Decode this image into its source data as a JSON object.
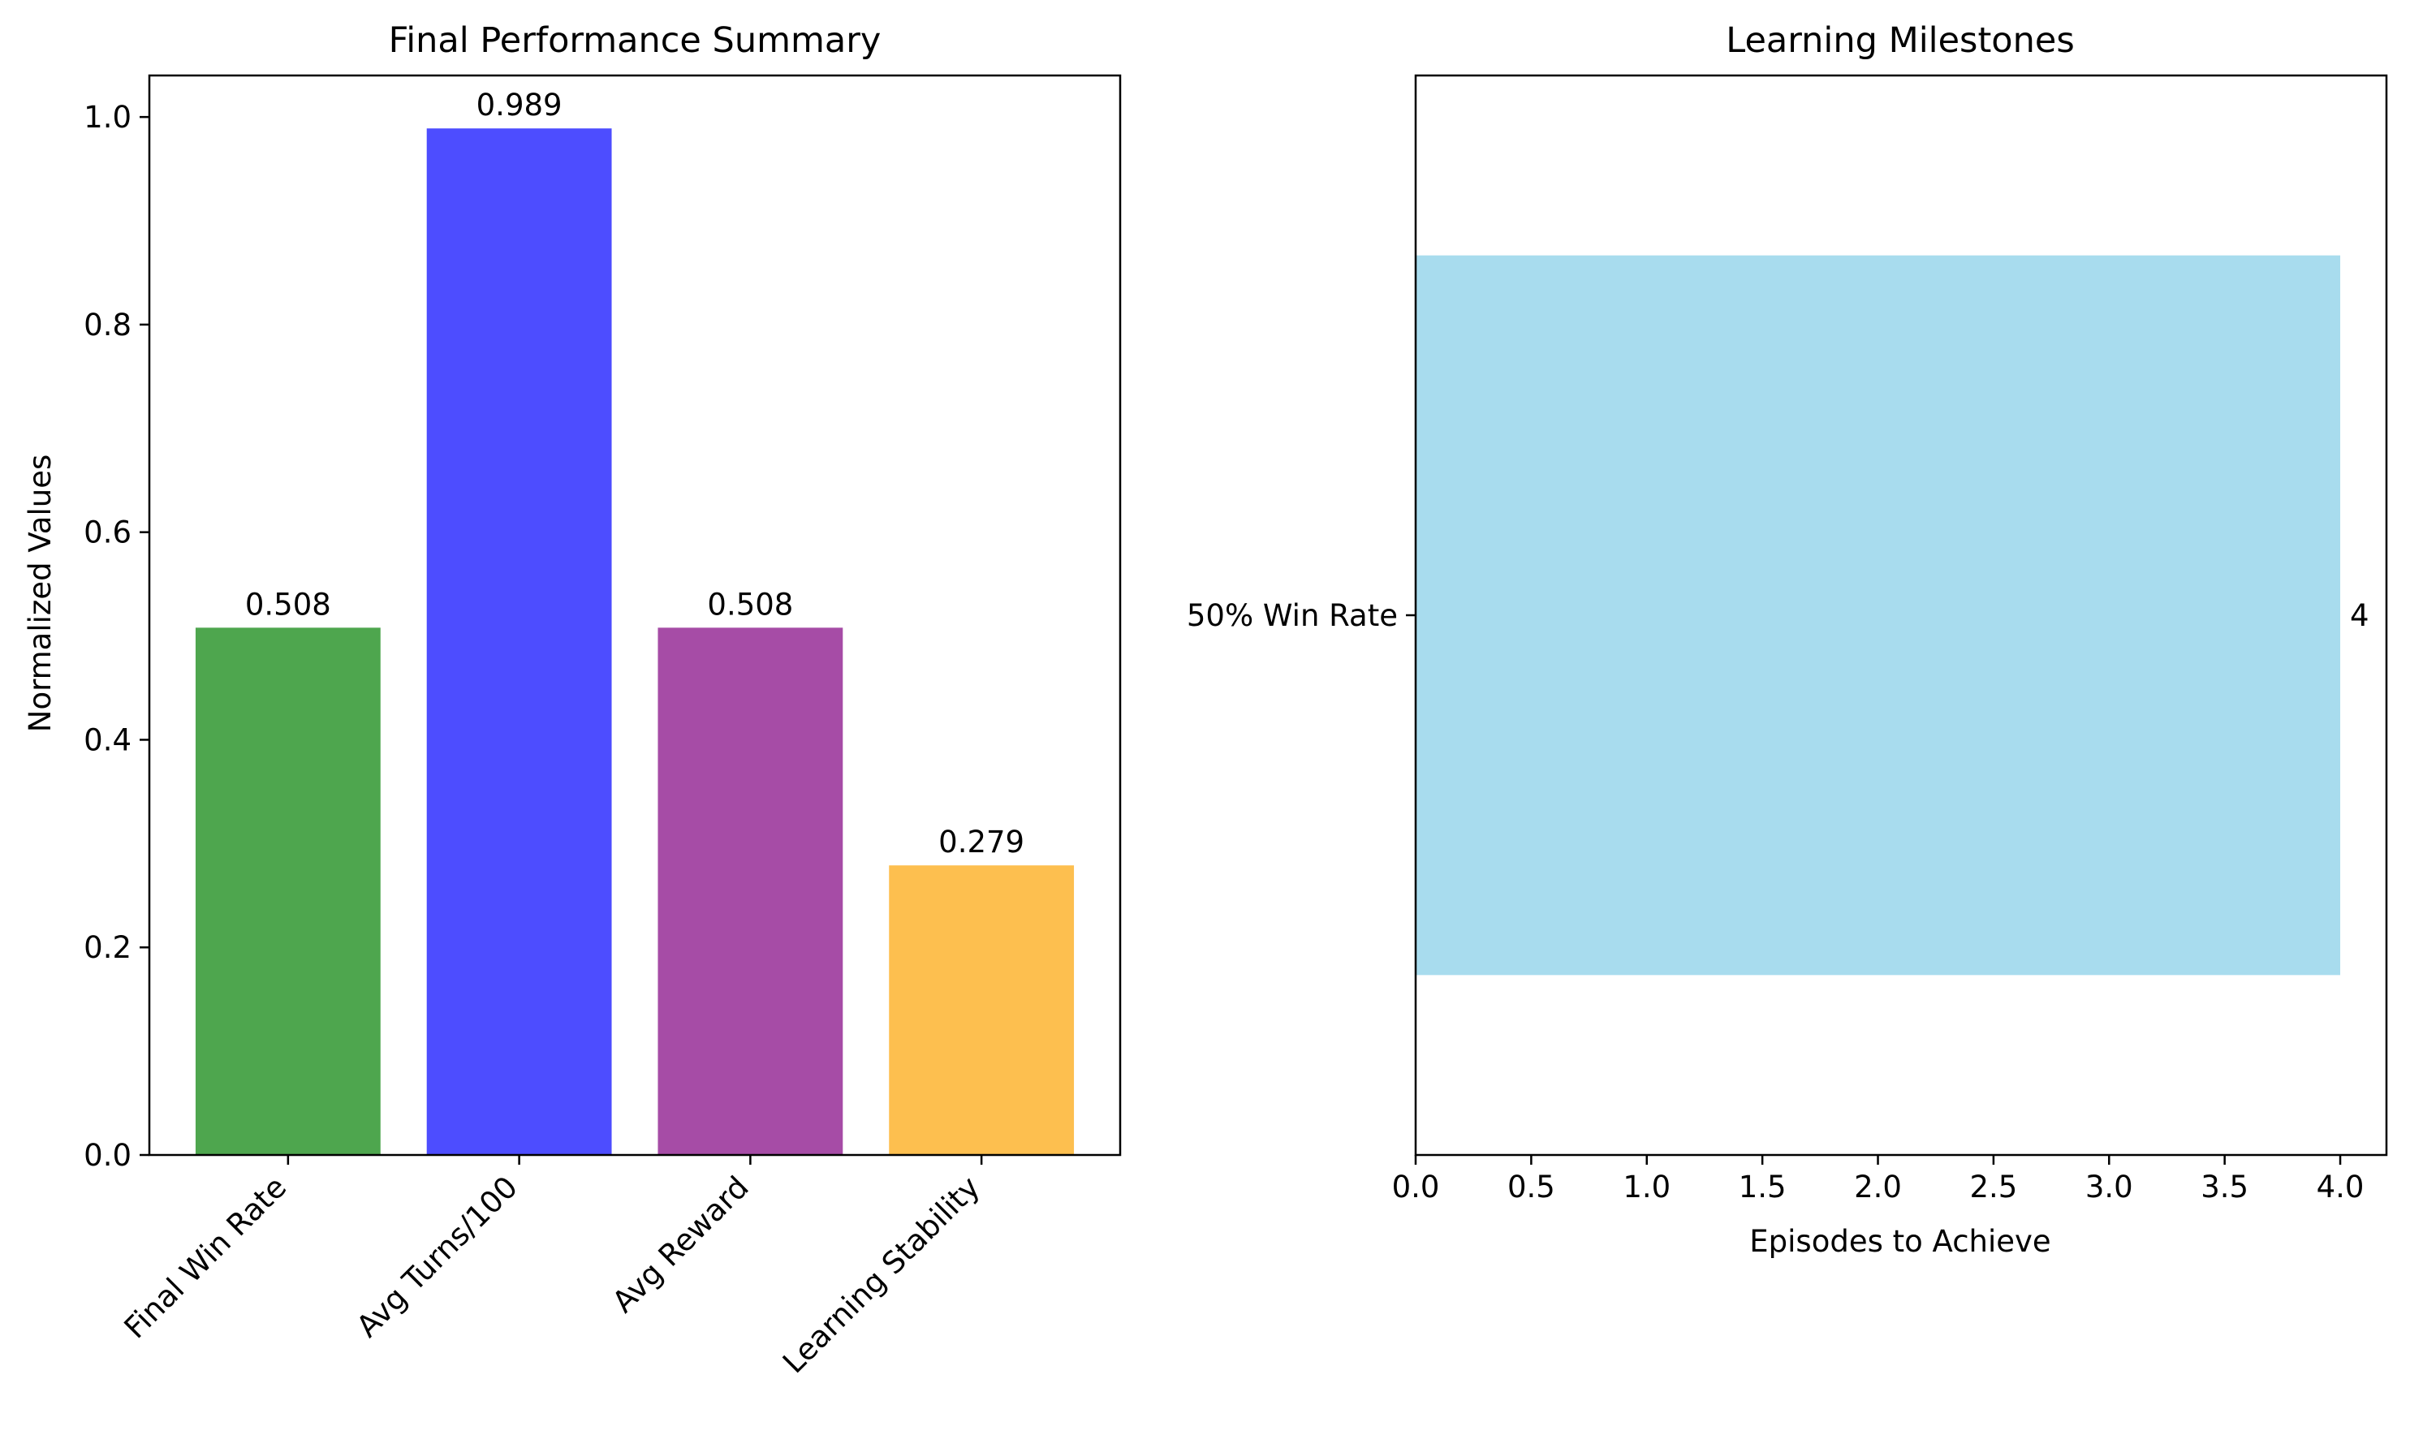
{
  "chart_data": [
    {
      "type": "bar",
      "title": "Final Performance Summary",
      "xlabel": "",
      "ylabel": "Normalized Values",
      "categories": [
        "Final Win Rate",
        "Avg Turns/100",
        "Avg Reward",
        "Learning Stability"
      ],
      "values": [
        0.508,
        0.989,
        0.508,
        0.279
      ],
      "value_labels": [
        "0.508",
        "0.989",
        "0.508",
        "0.279"
      ],
      "colors": [
        "#4ea64e",
        "#4d4dff",
        "#a64ca6",
        "#fdbf4f"
      ],
      "ylim": [
        0,
        1.04
      ],
      "yticks": [
        0.0,
        0.2,
        0.4,
        0.6,
        0.8,
        1.0
      ],
      "ytick_labels": [
        "0.0",
        "0.2",
        "0.4",
        "0.6",
        "0.8",
        "1.0"
      ],
      "grid": false
    },
    {
      "type": "bar",
      "orientation": "horizontal",
      "title": "Learning Milestones",
      "xlabel": "Episodes to Achieve",
      "ylabel": "",
      "categories": [
        "50% Win Rate"
      ],
      "values": [
        4
      ],
      "value_labels": [
        "4"
      ],
      "colors": [
        "#a8dcee"
      ],
      "xlim": [
        0,
        4.2
      ],
      "xticks": [
        0.0,
        0.5,
        1.0,
        1.5,
        2.0,
        2.5,
        3.0,
        3.5,
        4.0
      ],
      "xtick_labels": [
        "0.0",
        "0.5",
        "1.0",
        "1.5",
        "2.0",
        "2.5",
        "3.0",
        "3.5",
        "4.0"
      ],
      "grid": false
    }
  ]
}
